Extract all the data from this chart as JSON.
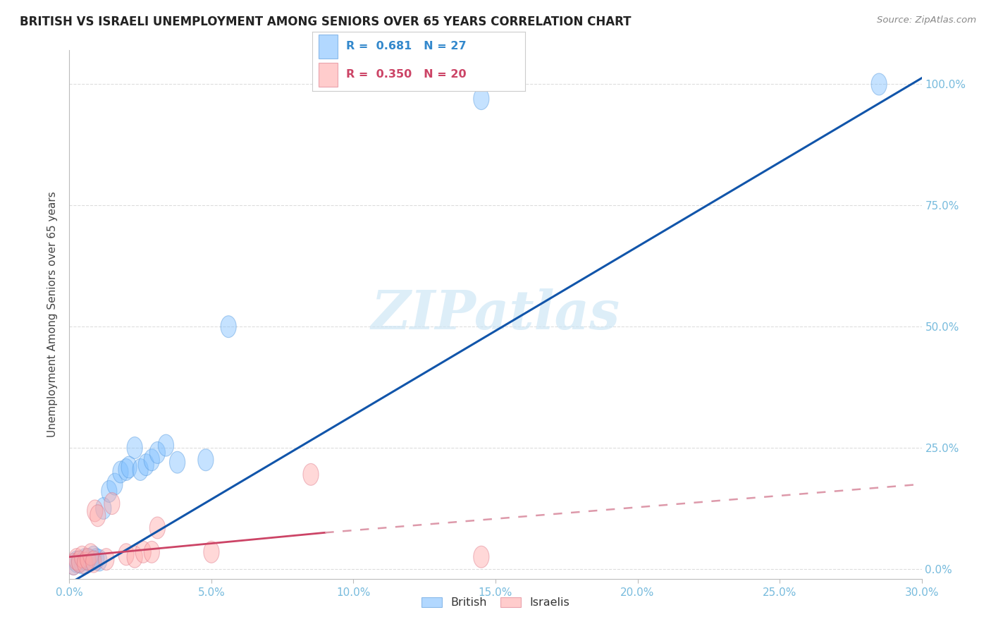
{
  "title": "BRITISH VS ISRAELI UNEMPLOYMENT AMONG SENIORS OVER 65 YEARS CORRELATION CHART",
  "source": "Source: ZipAtlas.com",
  "ylabel": "Unemployment Among Seniors over 65 years",
  "x_ticks_pct": [
    0.0,
    5.0,
    10.0,
    15.0,
    20.0,
    25.0,
    30.0
  ],
  "y_ticks_pct": [
    0.0,
    25.0,
    50.0,
    75.0,
    100.0
  ],
  "xlim": [
    0.0,
    30.0
  ],
  "ylim": [
    -2.0,
    107.0
  ],
  "watermark": "ZIPatlas",
  "british_color": "#7fbfff",
  "british_edge_color": "#5599dd",
  "israeli_color": "#ffaaaa",
  "israeli_edge_color": "#dd7788",
  "british_line_color": "#1155aa",
  "israeli_line_color": "#cc4466",
  "israeli_dash_color": "#dd99aa",
  "background_color": "#ffffff",
  "grid_color": "#dddddd",
  "tick_color": "#77bbdd",
  "british_x": [
    0.15,
    0.25,
    0.35,
    0.45,
    0.55,
    0.65,
    0.75,
    0.85,
    0.95,
    1.05,
    1.2,
    1.4,
    1.6,
    1.8,
    2.0,
    2.1,
    2.3,
    2.5,
    2.7,
    2.9,
    3.1,
    3.4,
    3.8,
    4.8,
    5.6,
    14.5,
    28.5
  ],
  "british_y": [
    1.0,
    1.5,
    1.5,
    1.2,
    2.0,
    2.0,
    1.8,
    2.5,
    2.0,
    1.8,
    12.5,
    16.0,
    17.5,
    20.0,
    20.5,
    21.0,
    25.0,
    20.5,
    21.5,
    22.5,
    24.0,
    25.5,
    22.0,
    22.5,
    50.0,
    97.0,
    100.0
  ],
  "israeli_x": [
    0.15,
    0.25,
    0.35,
    0.45,
    0.55,
    0.65,
    0.75,
    0.85,
    0.9,
    1.0,
    1.3,
    1.5,
    2.0,
    2.3,
    2.6,
    2.9,
    3.1,
    5.0,
    8.5,
    14.5
  ],
  "israeli_y": [
    1.0,
    2.0,
    1.5,
    2.5,
    1.2,
    2.0,
    3.0,
    1.5,
    12.0,
    11.0,
    2.0,
    13.5,
    3.0,
    2.5,
    3.5,
    3.5,
    8.5,
    3.5,
    19.5,
    2.5
  ],
  "brit_line_x0": 0.0,
  "brit_line_y0": -3.0,
  "brit_line_x1": 30.5,
  "brit_line_y1": 103.0,
  "isr_solid_x0": 0.0,
  "isr_solid_y0": 2.5,
  "isr_solid_x1": 9.0,
  "isr_solid_y1": 7.5,
  "isr_dash_x0": 9.0,
  "isr_dash_y0": 7.5,
  "isr_dash_x1": 30.0,
  "isr_dash_y1": 17.5
}
